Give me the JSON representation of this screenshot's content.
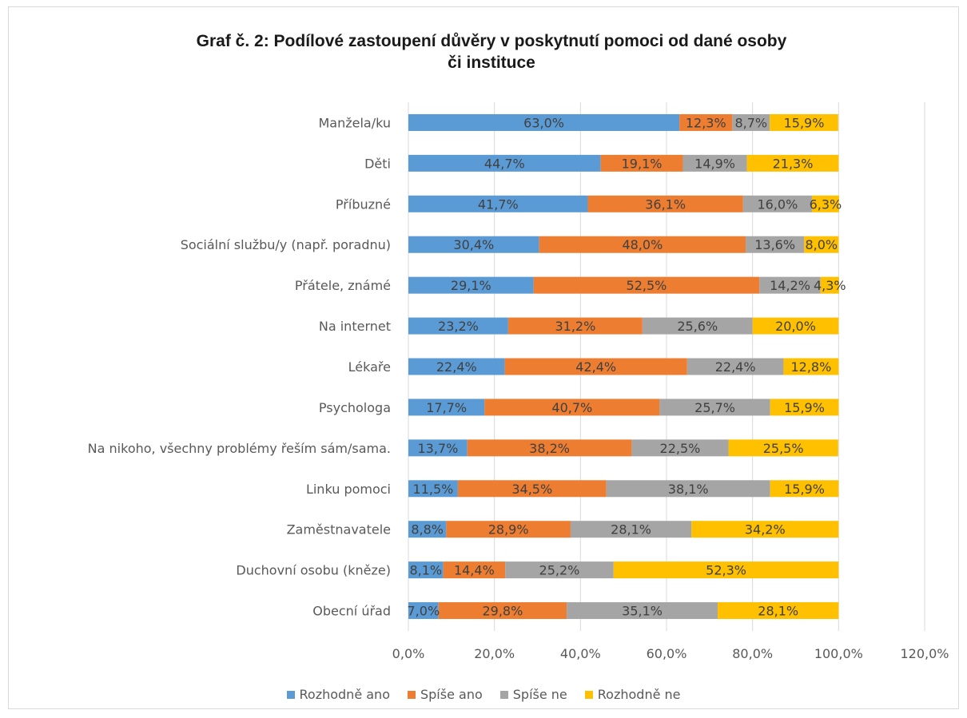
{
  "chart_data": {
    "type": "bar",
    "orientation": "horizontal",
    "stacked": true,
    "title": "Graf č. 2: Podílové zastoupení důvěry v poskytnutí pomoci od dané osoby či instituce",
    "title_lines": [
      "Graf č. 2: Podílové zastoupení důvěry v poskytnutí pomoci od dané osoby",
      "či instituce"
    ],
    "categories": [
      "Manžela/ku",
      "Děti",
      "Příbuzné",
      "Sociální službu/y (např. poradnu)",
      "Přátele, známé",
      "Na internet",
      "Lékaře",
      "Psychologa",
      "Na nikoho, všechny problémy řeším sám/sama.",
      "Linku pomoci",
      "Zaměstnavatele",
      "Duchovní osobu (kněze)",
      "Obecní úřad"
    ],
    "series": [
      {
        "name": "Rozhodně ano",
        "color": "#5b9bd5",
        "values": [
          63.0,
          44.7,
          41.7,
          30.4,
          29.1,
          23.2,
          22.4,
          17.7,
          13.7,
          11.5,
          8.8,
          8.1,
          7.0
        ],
        "labels": [
          "63,0%",
          "44,7%",
          "41,7%",
          "30,4%",
          "29,1%",
          "23,2%",
          "22,4%",
          "17,7%",
          "13,7%",
          "11,5%",
          "8,8%",
          "8,1%",
          "7,0%"
        ]
      },
      {
        "name": "Spíše ano",
        "color": "#ed7d31",
        "values": [
          12.3,
          19.1,
          36.1,
          48.0,
          52.5,
          31.2,
          42.4,
          40.7,
          38.2,
          34.5,
          28.9,
          14.4,
          29.8
        ],
        "labels": [
          "12,3%",
          "19,1%",
          "36,1%",
          "48,0%",
          "52,5%",
          "31,2%",
          "42,4%",
          "40,7%",
          "38,2%",
          "34,5%",
          "28,9%",
          "14,4%",
          "29,8%"
        ]
      },
      {
        "name": "Spíše ne",
        "color": "#a5a5a5",
        "values": [
          8.7,
          14.9,
          16.0,
          13.6,
          14.2,
          25.6,
          22.4,
          25.7,
          22.5,
          38.1,
          28.1,
          25.2,
          35.1
        ],
        "labels": [
          "8,7%",
          "14,9%",
          "16,0%",
          "13,6%",
          "14,2%",
          "25,6%",
          "22,4%",
          "25,7%",
          "22,5%",
          "38,1%",
          "28,1%",
          "25,2%",
          "35,1%"
        ]
      },
      {
        "name": "Rozhodně ne",
        "color": "#ffc000",
        "values": [
          15.9,
          21.3,
          6.3,
          8.0,
          4.3,
          20.0,
          12.8,
          15.9,
          25.5,
          15.9,
          34.2,
          52.3,
          28.1
        ],
        "labels": [
          "15,9%",
          "21,3%",
          "6,3%",
          "8,0%",
          "4,3%",
          "20,0%",
          "12,8%",
          "15,9%",
          "25,5%",
          "15,9%",
          "34,2%",
          "52,3%",
          "28,1%"
        ]
      }
    ],
    "xlim": [
      0,
      120
    ],
    "xticks": [
      0,
      20,
      40,
      60,
      80,
      100,
      120
    ],
    "xtick_labels": [
      "0,0%",
      "20,0%",
      "40,0%",
      "60,0%",
      "80,0%",
      "100,0%",
      "120,0%"
    ],
    "grid": true,
    "legend_position": "bottom"
  }
}
